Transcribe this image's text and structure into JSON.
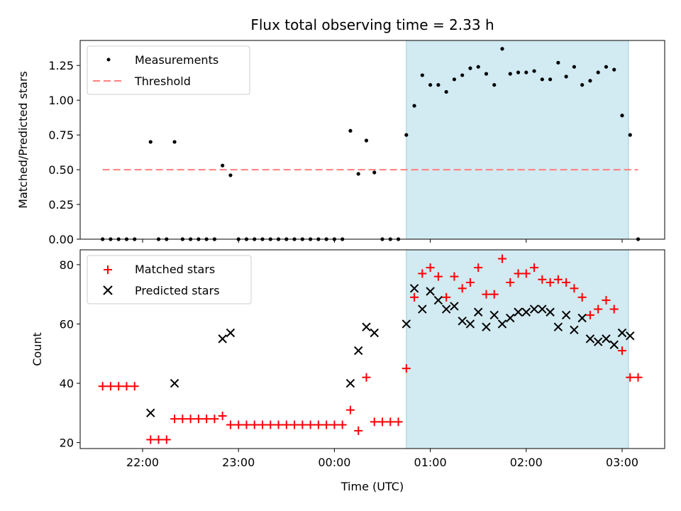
{
  "chart_data": [
    {
      "type": "scatter",
      "title": "Flux total observing time = 2.33 h",
      "ylabel": "Matched/Predicted stars",
      "xlabel": "",
      "ylim": [
        0,
        1.43
      ],
      "yticks": [
        "0.00",
        "0.25",
        "0.50",
        "0.75",
        "1.00",
        "1.25"
      ],
      "legend": {
        "position": "top-left",
        "items": [
          "Measurements",
          "Threshold"
        ]
      },
      "threshold": {
        "name": "Threshold",
        "value": 0.5,
        "x_start": "21:35",
        "x_end": "03:10",
        "color": "#ff7f7f"
      },
      "shaded_region": {
        "start": "00:45",
        "end": "03:04",
        "color": "#add8e6"
      },
      "series": [
        {
          "name": "Measurements",
          "color": "#000000",
          "points": [
            [
              "21:35",
              0
            ],
            [
              "21:40",
              0
            ],
            [
              "21:45",
              0
            ],
            [
              "21:50",
              0
            ],
            [
              "21:55",
              0
            ],
            [
              "22:05",
              0.7
            ],
            [
              "22:10",
              0
            ],
            [
              "22:15",
              0
            ],
            [
              "22:20",
              0.7
            ],
            [
              "22:25",
              0
            ],
            [
              "22:30",
              0
            ],
            [
              "22:35",
              0
            ],
            [
              "22:40",
              0
            ],
            [
              "22:45",
              0
            ],
            [
              "22:50",
              0.53
            ],
            [
              "22:55",
              0.46
            ],
            [
              "23:00",
              0
            ],
            [
              "23:05",
              0
            ],
            [
              "23:10",
              0
            ],
            [
              "23:15",
              0
            ],
            [
              "23:20",
              0
            ],
            [
              "23:25",
              0
            ],
            [
              "23:30",
              0
            ],
            [
              "23:35",
              0
            ],
            [
              "23:40",
              0
            ],
            [
              "23:45",
              0
            ],
            [
              "23:50",
              0
            ],
            [
              "23:55",
              0
            ],
            [
              "00:00",
              0
            ],
            [
              "00:05",
              0
            ],
            [
              "00:10",
              0.78
            ],
            [
              "00:15",
              0.47
            ],
            [
              "00:20",
              0.71
            ],
            [
              "00:25",
              0.48
            ],
            [
              "00:30",
              0
            ],
            [
              "00:35",
              0
            ],
            [
              "00:40",
              0
            ],
            [
              "00:45",
              0.75
            ],
            [
              "00:50",
              0.96
            ],
            [
              "00:55",
              1.18
            ],
            [
              "01:00",
              1.11
            ],
            [
              "01:05",
              1.11
            ],
            [
              "01:10",
              1.06
            ],
            [
              "01:15",
              1.15
            ],
            [
              "01:20",
              1.18
            ],
            [
              "01:25",
              1.23
            ],
            [
              "01:30",
              1.24
            ],
            [
              "01:35",
              1.19
            ],
            [
              "01:40",
              1.11
            ],
            [
              "01:45",
              1.37
            ],
            [
              "01:50",
              1.19
            ],
            [
              "01:55",
              1.2
            ],
            [
              "02:00",
              1.2
            ],
            [
              "02:05",
              1.21
            ],
            [
              "02:10",
              1.15
            ],
            [
              "02:15",
              1.15
            ],
            [
              "02:20",
              1.27
            ],
            [
              "02:25",
              1.17
            ],
            [
              "02:30",
              1.24
            ],
            [
              "02:35",
              1.11
            ],
            [
              "02:40",
              1.14
            ],
            [
              "02:45",
              1.2
            ],
            [
              "02:50",
              1.24
            ],
            [
              "02:55",
              1.22
            ],
            [
              "03:00",
              0.89
            ],
            [
              "03:05",
              0.75
            ],
            [
              "03:10",
              0
            ]
          ]
        }
      ]
    },
    {
      "type": "scatter",
      "title": "",
      "xlabel": "Time (UTC)",
      "ylabel": "Count",
      "ylim": [
        18,
        85
      ],
      "yticks": [
        "20",
        "40",
        "60",
        "80"
      ],
      "xticks": [
        "22:00",
        "23:00",
        "00:00",
        "01:00",
        "02:00",
        "03:00"
      ],
      "legend": {
        "position": "top-left",
        "items": [
          "Matched stars",
          "Predicted stars"
        ]
      },
      "shaded_region": {
        "start": "00:45",
        "end": "03:04",
        "color": "#add8e6"
      },
      "series": [
        {
          "name": "Matched stars",
          "marker": "+",
          "color": "#ff0000",
          "points": [
            [
              "21:35",
              39
            ],
            [
              "21:40",
              39
            ],
            [
              "21:45",
              39
            ],
            [
              "21:50",
              39
            ],
            [
              "21:55",
              39
            ],
            [
              "22:05",
              21
            ],
            [
              "22:10",
              21
            ],
            [
              "22:15",
              21
            ],
            [
              "22:20",
              28
            ],
            [
              "22:25",
              28
            ],
            [
              "22:30",
              28
            ],
            [
              "22:35",
              28
            ],
            [
              "22:40",
              28
            ],
            [
              "22:45",
              28
            ],
            [
              "22:50",
              29
            ],
            [
              "22:55",
              26
            ],
            [
              "23:00",
              26
            ],
            [
              "23:05",
              26
            ],
            [
              "23:10",
              26
            ],
            [
              "23:15",
              26
            ],
            [
              "23:20",
              26
            ],
            [
              "23:25",
              26
            ],
            [
              "23:30",
              26
            ],
            [
              "23:35",
              26
            ],
            [
              "23:40",
              26
            ],
            [
              "23:45",
              26
            ],
            [
              "23:50",
              26
            ],
            [
              "23:55",
              26
            ],
            [
              "00:00",
              26
            ],
            [
              "00:05",
              26
            ],
            [
              "00:10",
              31
            ],
            [
              "00:15",
              24
            ],
            [
              "00:20",
              42
            ],
            [
              "00:25",
              27
            ],
            [
              "00:30",
              27
            ],
            [
              "00:35",
              27
            ],
            [
              "00:40",
              27
            ],
            [
              "00:45",
              45
            ],
            [
              "00:50",
              69
            ],
            [
              "00:55",
              77
            ],
            [
              "01:00",
              79
            ],
            [
              "01:05",
              76
            ],
            [
              "01:10",
              69
            ],
            [
              "01:15",
              76
            ],
            [
              "01:20",
              72
            ],
            [
              "01:25",
              74
            ],
            [
              "01:30",
              79
            ],
            [
              "01:35",
              70
            ],
            [
              "01:40",
              70
            ],
            [
              "01:45",
              82
            ],
            [
              "01:50",
              74
            ],
            [
              "01:55",
              77
            ],
            [
              "02:00",
              77
            ],
            [
              "02:05",
              79
            ],
            [
              "02:10",
              75
            ],
            [
              "02:15",
              74
            ],
            [
              "02:20",
              75
            ],
            [
              "02:25",
              74
            ],
            [
              "02:30",
              72
            ],
            [
              "02:35",
              69
            ],
            [
              "02:40",
              63
            ],
            [
              "02:45",
              65
            ],
            [
              "02:50",
              68
            ],
            [
              "02:55",
              65
            ],
            [
              "03:00",
              51
            ],
            [
              "03:05",
              42
            ],
            [
              "03:10",
              42
            ]
          ]
        },
        {
          "name": "Predicted stars",
          "marker": "x",
          "color": "#000000",
          "points": [
            [
              "22:05",
              30
            ],
            [
              "22:20",
              40
            ],
            [
              "22:50",
              55
            ],
            [
              "22:55",
              57
            ],
            [
              "00:10",
              40
            ],
            [
              "00:15",
              51
            ],
            [
              "00:20",
              59
            ],
            [
              "00:25",
              57
            ],
            [
              "00:45",
              60
            ],
            [
              "00:50",
              72
            ],
            [
              "00:55",
              65
            ],
            [
              "01:00",
              71
            ],
            [
              "01:05",
              68
            ],
            [
              "01:10",
              65
            ],
            [
              "01:15",
              66
            ],
            [
              "01:20",
              61
            ],
            [
              "01:25",
              60
            ],
            [
              "01:30",
              64
            ],
            [
              "01:35",
              59
            ],
            [
              "01:40",
              63
            ],
            [
              "01:45",
              60
            ],
            [
              "01:50",
              62
            ],
            [
              "01:55",
              64
            ],
            [
              "02:00",
              64
            ],
            [
              "02:05",
              65
            ],
            [
              "02:10",
              65
            ],
            [
              "02:15",
              64
            ],
            [
              "02:20",
              59
            ],
            [
              "02:25",
              63
            ],
            [
              "02:30",
              58
            ],
            [
              "02:35",
              62
            ],
            [
              "02:40",
              55
            ],
            [
              "02:45",
              54
            ],
            [
              "02:50",
              55
            ],
            [
              "02:55",
              53
            ],
            [
              "03:00",
              57
            ],
            [
              "03:05",
              56
            ]
          ]
        }
      ]
    }
  ]
}
